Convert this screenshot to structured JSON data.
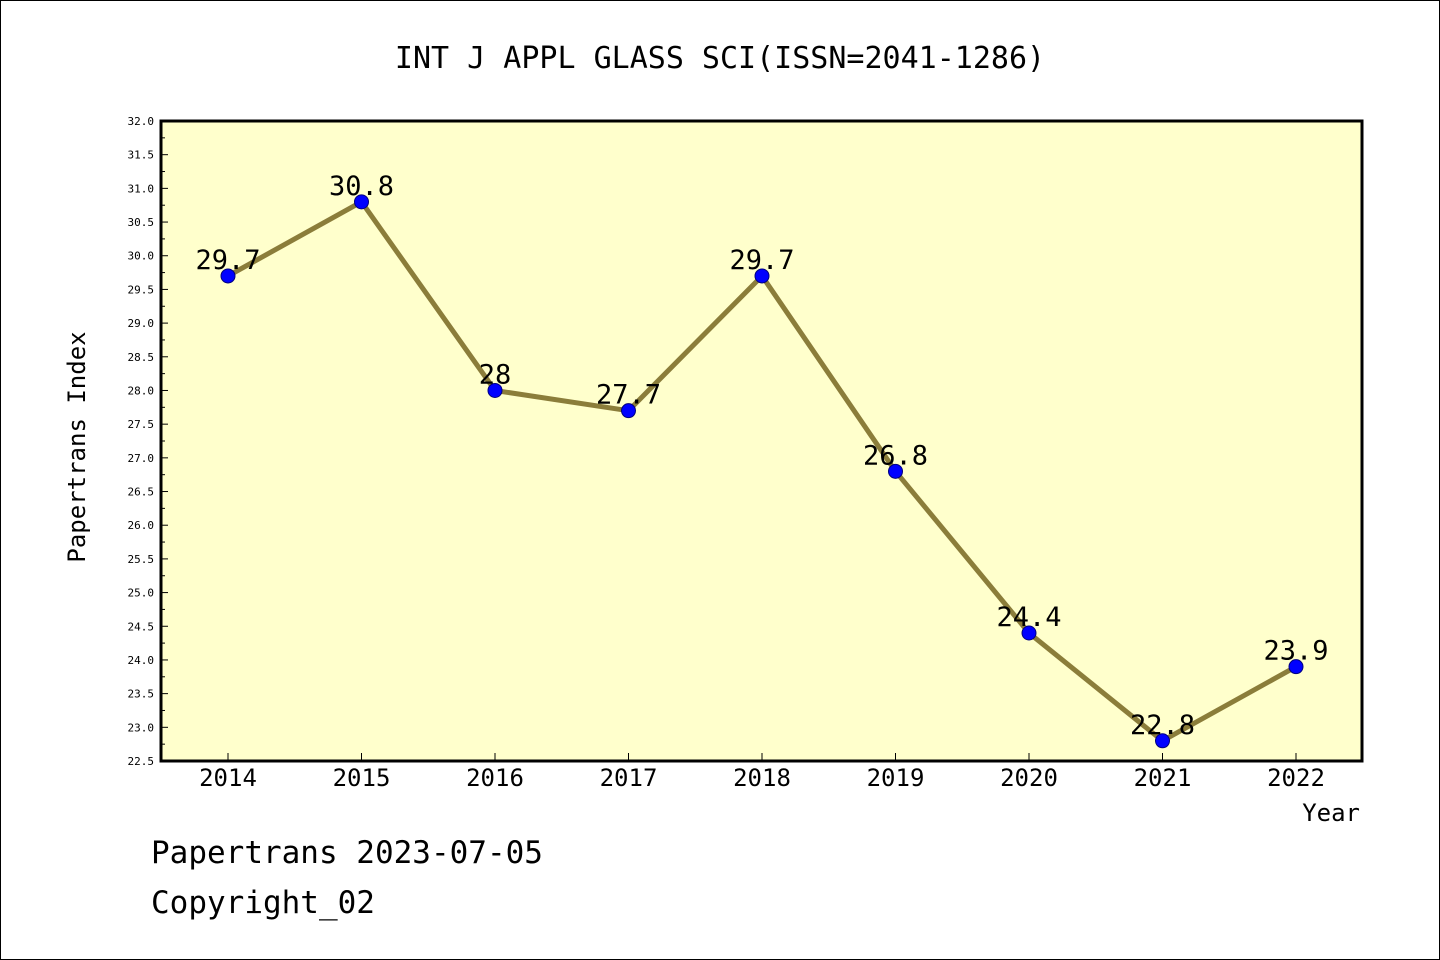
{
  "chart_data": {
    "type": "line",
    "title": "INT J APPL GLASS SCI(ISSN=2041-1286)",
    "xlabel": "Year",
    "ylabel": "Papertrans Index",
    "categories": [
      "2014",
      "2015",
      "2016",
      "2017",
      "2018",
      "2019",
      "2020",
      "2021",
      "2022"
    ],
    "series": [
      {
        "values": [
          29.7,
          30.8,
          28,
          27.7,
          29.7,
          26.8,
          24.4,
          22.8,
          23.9
        ],
        "data_labels": [
          "29.7",
          "30.8",
          "28",
          "27.7",
          "29.7",
          "26.8",
          "24.4",
          "22.8",
          "23.9"
        ]
      }
    ],
    "ylim": [
      22.5,
      32.0
    ],
    "yticks": [
      "22.5",
      "23.0",
      "23.5",
      "24.0",
      "24.5",
      "25.0",
      "25.5",
      "26.0",
      "26.5",
      "27.0",
      "27.5",
      "28.0",
      "28.5",
      "29.0",
      "29.5",
      "30.0",
      "30.5",
      "31.0",
      "31.5",
      "32.0"
    ],
    "grid": false,
    "legend": "none",
    "colors": {
      "plot_background": "#ffffcc",
      "line": "#8b7d3a",
      "marker": "#0000ff",
      "marker_edge": "#000080"
    }
  },
  "footer": {
    "line1": "Papertrans 2023-07-05",
    "line2": "Copyright_02"
  }
}
